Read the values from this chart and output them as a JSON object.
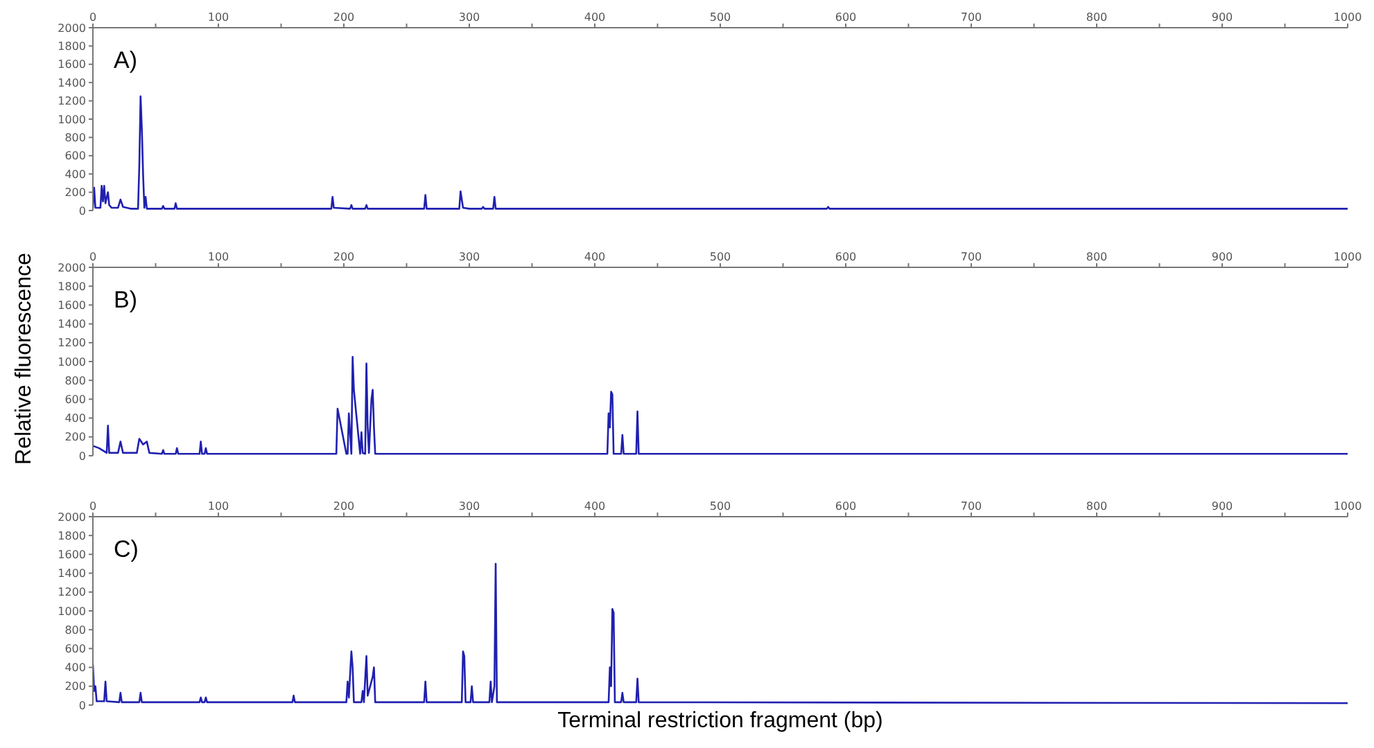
{
  "chart_data": [
    {
      "type": "line",
      "annotations": [
        "A)"
      ],
      "xlim": [
        0,
        1000
      ],
      "xticks": [
        0,
        {
          "value": 50,
          "label": null
        },
        100,
        {
          "value": 150,
          "label": null
        },
        200,
        {
          "value": 250,
          "label": null
        },
        300,
        {
          "value": 350,
          "label": null
        },
        400,
        {
          "value": 450,
          "label": null
        },
        500,
        {
          "value": 550,
          "label": null
        },
        600,
        {
          "value": 650,
          "label": null
        },
        700,
        {
          "value": 750,
          "label": null
        },
        800,
        {
          "value": 850,
          "label": null
        },
        900,
        {
          "value": 950,
          "label": null
        },
        1000
      ],
      "ylim": [
        0,
        2000
      ],
      "yticks": [
        0,
        200,
        400,
        600,
        800,
        1000,
        1200,
        1400,
        1600,
        1800,
        2000
      ],
      "series": [
        {
          "color": "#2020b0",
          "x": [
            0,
            1,
            2,
            6,
            7,
            8,
            9,
            10,
            12,
            13,
            15,
            20,
            22,
            24,
            30,
            36,
            37,
            38,
            39,
            40,
            41,
            42,
            43,
            55,
            56,
            57,
            65,
            66,
            67,
            100,
            190,
            191,
            192,
            205,
            206,
            207,
            217,
            218,
            219,
            264,
            265,
            266,
            292,
            293,
            295,
            300,
            310,
            311,
            312,
            319,
            320,
            321,
            400,
            585,
            586,
            587,
            1000
          ],
          "values": [
            30,
            250,
            30,
            30,
            270,
            100,
            270,
            80,
            200,
            60,
            30,
            30,
            120,
            40,
            20,
            20,
            500,
            1250,
            900,
            400,
            30,
            150,
            20,
            20,
            50,
            20,
            20,
            80,
            20,
            20,
            20,
            150,
            30,
            20,
            60,
            20,
            20,
            60,
            20,
            20,
            170,
            20,
            20,
            210,
            30,
            20,
            20,
            40,
            20,
            20,
            150,
            20,
            20,
            20,
            40,
            20,
            20
          ]
        }
      ]
    },
    {
      "type": "line",
      "annotations": [
        "B)"
      ],
      "ylabel": "Relative fluorescence",
      "xlim": [
        0,
        1000
      ],
      "xticks": [
        0,
        {
          "value": 50,
          "label": null
        },
        100,
        {
          "value": 150,
          "label": null
        },
        200,
        {
          "value": 250,
          "label": null
        },
        300,
        {
          "value": 350,
          "label": null
        },
        400,
        {
          "value": 450,
          "label": null
        },
        500,
        {
          "value": 550,
          "label": null
        },
        600,
        {
          "value": 650,
          "label": null
        },
        700,
        {
          "value": 750,
          "label": null
        },
        800,
        {
          "value": 850,
          "label": null
        },
        900,
        {
          "value": 950,
          "label": null
        },
        1000
      ],
      "ylim": [
        0,
        2000
      ],
      "yticks": [
        0,
        200,
        400,
        600,
        800,
        1000,
        1200,
        1400,
        1600,
        1800,
        2000
      ],
      "series": [
        {
          "color": "#2020b0",
          "x": [
            0,
            1,
            5,
            11,
            12,
            13,
            20,
            22,
            24,
            35,
            37,
            40,
            43,
            45,
            55,
            56,
            57,
            66,
            67,
            68,
            85,
            86,
            87,
            89,
            90,
            91,
            150,
            193,
            194,
            195,
            202,
            203,
            204,
            206,
            207,
            208,
            213,
            214,
            215,
            217,
            218,
            219,
            220,
            222,
            223,
            224,
            225,
            300,
            410,
            411,
            412,
            413,
            414,
            415,
            421,
            422,
            423,
            433,
            434,
            435,
            1000
          ],
          "values": [
            100,
            100,
            80,
            30,
            320,
            30,
            30,
            150,
            30,
            30,
            180,
            120,
            150,
            30,
            20,
            60,
            20,
            20,
            80,
            20,
            20,
            150,
            20,
            20,
            80,
            20,
            20,
            20,
            20,
            500,
            20,
            20,
            450,
            20,
            1050,
            700,
            20,
            250,
            30,
            20,
            980,
            300,
            30,
            600,
            700,
            300,
            20,
            20,
            20,
            450,
            300,
            680,
            650,
            20,
            20,
            220,
            20,
            20,
            470,
            20,
            20
          ]
        }
      ]
    },
    {
      "type": "line",
      "annotations": [
        "C)"
      ],
      "xlabel": "Terminal restriction fragment (bp)",
      "xlim": [
        0,
        1000
      ],
      "xticks": [
        0,
        {
          "value": 50,
          "label": null
        },
        100,
        {
          "value": 150,
          "label": null
        },
        200,
        {
          "value": 250,
          "label": null
        },
        300,
        {
          "value": 350,
          "label": null
        },
        400,
        {
          "value": 450,
          "label": null
        },
        500,
        {
          "value": 550,
          "label": null
        },
        600,
        {
          "value": 650,
          "label": null
        },
        700,
        {
          "value": 750,
          "label": null
        },
        800,
        {
          "value": 850,
          "label": null
        },
        900,
        {
          "value": 950,
          "label": null
        },
        1000
      ],
      "ylim": [
        0,
        2000
      ],
      "yticks": [
        0,
        200,
        400,
        600,
        800,
        1000,
        1200,
        1400,
        1600,
        1800,
        2000
      ],
      "series": [
        {
          "color": "#2020b0",
          "x": [
            0,
            1,
            2,
            3,
            9,
            10,
            11,
            21,
            22,
            23,
            37,
            38,
            39,
            85,
            86,
            87,
            89,
            90,
            91,
            159,
            160,
            161,
            202,
            203,
            204,
            206,
            207,
            208,
            214,
            215,
            216,
            218,
            219,
            223,
            224,
            225,
            264,
            265,
            266,
            294,
            295,
            296,
            297,
            301,
            302,
            303,
            316,
            317,
            318,
            320,
            321,
            322,
            411,
            412,
            413,
            414,
            415,
            416,
            421,
            422,
            423,
            433,
            434,
            435,
            1000
          ],
          "values": [
            430,
            150,
            200,
            40,
            40,
            250,
            40,
            30,
            130,
            30,
            30,
            130,
            30,
            30,
            80,
            30,
            30,
            80,
            30,
            30,
            100,
            30,
            30,
            250,
            80,
            570,
            400,
            30,
            30,
            150,
            30,
            520,
            100,
            300,
            400,
            30,
            30,
            250,
            30,
            30,
            570,
            520,
            30,
            30,
            200,
            30,
            30,
            250,
            30,
            200,
            1500,
            30,
            30,
            400,
            200,
            1020,
            980,
            30,
            30,
            130,
            30,
            30,
            280,
            30,
            20
          ]
        }
      ]
    }
  ]
}
